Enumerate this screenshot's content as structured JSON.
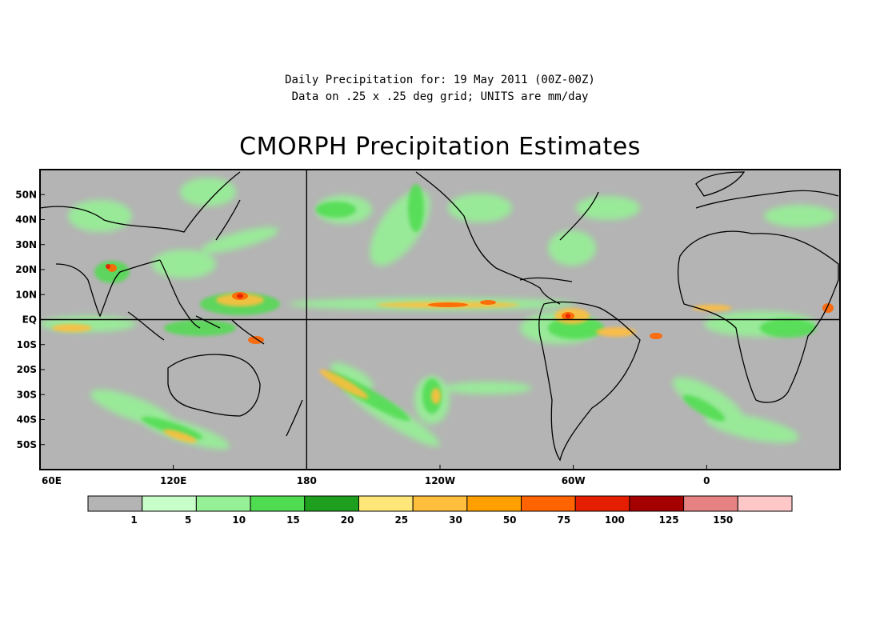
{
  "header": {
    "line1": "Daily Precipitation for: 19 May 2011 (00Z-00Z)",
    "line2": "Data on .25 x .25 deg grid; UNITS are mm/day"
  },
  "title": "CMORPH Precipitation Estimates",
  "map": {
    "lon_range": [
      60,
      420
    ],
    "lat_range": [
      -60,
      60
    ],
    "background": "#b4b4b4",
    "coast_color": "#000000",
    "lat_ticks": [
      {
        "lat": 50,
        "label": "50N"
      },
      {
        "lat": 40,
        "label": "40N"
      },
      {
        "lat": 30,
        "label": "30N"
      },
      {
        "lat": 20,
        "label": "20N"
      },
      {
        "lat": 10,
        "label": "10N"
      },
      {
        "lat": 0,
        "label": "EQ"
      },
      {
        "lat": -10,
        "label": "10S"
      },
      {
        "lat": -20,
        "label": "20S"
      },
      {
        "lat": -30,
        "label": "30S"
      },
      {
        "lat": -40,
        "label": "40S"
      },
      {
        "lat": -50,
        "label": "50S"
      }
    ],
    "lon_ticks": [
      {
        "lon": 60,
        "label": "60E"
      },
      {
        "lon": 120,
        "label": "120E"
      },
      {
        "lon": 180,
        "label": "180"
      },
      {
        "lon": 240,
        "label": "120W"
      },
      {
        "lon": 300,
        "label": "60W"
      },
      {
        "lon": 360,
        "label": "0"
      }
    ],
    "reference_lines": {
      "equator_lat": 0,
      "dateline_lon": 180
    }
  },
  "colorbar": {
    "colors": [
      "#b4b4b4",
      "#c8ffc8",
      "#96f096",
      "#50dc50",
      "#1ea01e",
      "#ffe678",
      "#ffbe3c",
      "#ffa000",
      "#ff6400",
      "#e61e00",
      "#a50000",
      "#e68282",
      "#ffc8c8"
    ],
    "labels": [
      "1",
      "5",
      "10",
      "15",
      "20",
      "25",
      "30",
      "50",
      "75",
      "100",
      "125",
      "150"
    ]
  }
}
